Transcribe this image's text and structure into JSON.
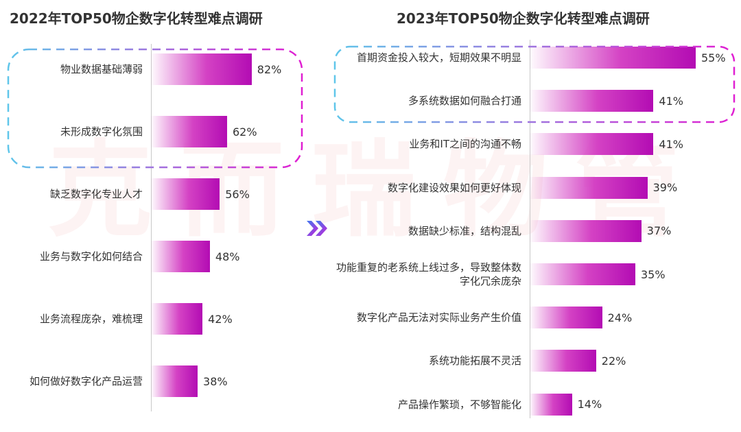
{
  "watermark": "克而瑞物管",
  "colors": {
    "bar_start": "#f7d8f1",
    "bar_end": "#b30cb3",
    "highlight_start": "#5fc6ea",
    "highlight_end": "#e01fd2",
    "chevron": "#7a3ce0"
  },
  "icons": {
    "divider": "double-chevron-right-icon"
  },
  "chart_data": [
    {
      "type": "bar",
      "orientation": "horizontal",
      "title": "2022年TOP50物企数字化转型难点调研",
      "categories": [
        "物业数据基础薄弱",
        "未形成数字化氛围",
        "缺乏数字化专业人才",
        "业务与数字化如何结合",
        "业务流程庞杂，难梳理",
        "如何做好数字化产品运营"
      ],
      "values": [
        82,
        62,
        56,
        48,
        42,
        38
      ],
      "labels": [
        "82%",
        "62%",
        "56%",
        "48%",
        "42%",
        "38%"
      ],
      "highlighted_count": 2
    },
    {
      "type": "bar",
      "orientation": "horizontal",
      "title": "2023年TOP50物企数字化转型难点调研",
      "categories": [
        "首期资金投入较大，短期效果不明显",
        "多系统数据如何融合打通",
        "业务和IT之间的沟通不畅",
        "数字化建设效果如何更好体现",
        "数据缺少标准，结构混乱",
        "功能重复的老系统上线过多，导致整体数字化冗余庞杂",
        "数字化产品无法对实际业务产生价值",
        "系统功能拓展不灵活",
        "产品操作繁琐，不够智能化"
      ],
      "values": [
        55,
        41,
        41,
        39,
        37,
        35,
        24,
        22,
        14
      ],
      "labels": [
        "55%",
        "41%",
        "41%",
        "39%",
        "37%",
        "35%",
        "24%",
        "22%",
        "14%"
      ],
      "highlighted_count": 2
    }
  ]
}
